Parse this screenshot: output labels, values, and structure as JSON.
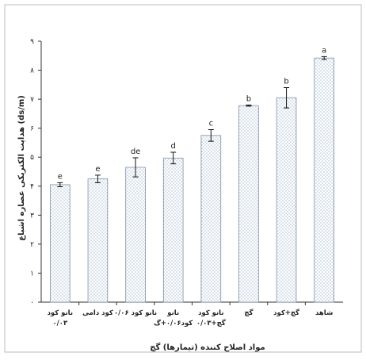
{
  "chart_data": {
    "type": "bar",
    "title": "",
    "ylabel": "هدایت الکتریکی عصاره اشباع (ds/m)",
    "xlabel": "مواد اصلاح کننده (تیمارها) گچ",
    "ylim": [
      0,
      9
    ],
    "yticks": [
      "۰",
      "۱",
      "۲",
      "۳",
      "۴",
      "۵",
      "۶",
      "۷",
      "۸",
      "۹"
    ],
    "categories": [
      [
        "نانو کود",
        "۰/۰۳"
      ],
      [
        "کود دامی"
      ],
      [
        "نانو کود ۰/۰۶"
      ],
      [
        "نانو",
        "کود۰/۰۶+گ"
      ],
      [
        "نانو کود",
        "۰/۰۳+گچ"
      ],
      [
        "گچ"
      ],
      [
        "گچ+کود"
      ],
      [
        "شاهد"
      ]
    ],
    "values": [
      4.05,
      4.25,
      4.65,
      4.97,
      5.75,
      6.78,
      7.05,
      8.42
    ],
    "errors": [
      0.07,
      0.13,
      0.33,
      0.2,
      0.2,
      0.02,
      0.35,
      0.05
    ],
    "letters": [
      "e",
      "e",
      "de",
      "d",
      "c",
      "b",
      "b",
      "a"
    ],
    "grid": false,
    "bar_color": "#e2eaf4"
  }
}
